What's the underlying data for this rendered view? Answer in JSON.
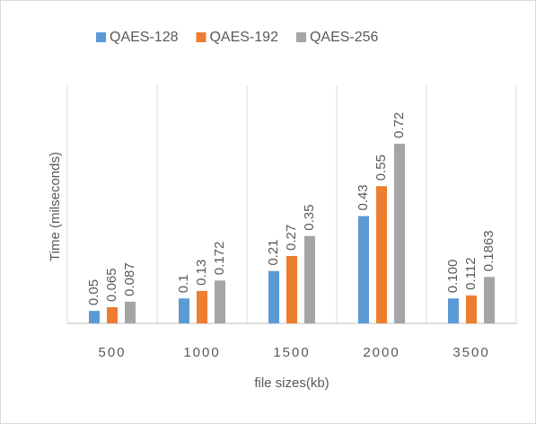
{
  "chart_data": {
    "type": "bar",
    "x_label": "file sizes(kb)",
    "y_label": "Time (milseconds)",
    "categories": [
      "500",
      "1000",
      "1500",
      "2000",
      "3500"
    ],
    "series": [
      {
        "name": "QAES-128",
        "color": "#5b9bd5",
        "values": [
          0.05,
          0.1,
          0.21,
          0.43,
          0.1
        ],
        "value_labels": [
          "0.05",
          "0.1",
          "0.21",
          "0.43",
          "0.100"
        ]
      },
      {
        "name": "QAES-192",
        "color": "#ed7d31",
        "values": [
          0.065,
          0.13,
          0.27,
          0.55,
          0.112
        ]
      },
      {
        "name": "QAES-256",
        "color": "#a5a5a5",
        "values": [
          0.087,
          0.172,
          0.35,
          0.72,
          0.1863
        ]
      }
    ],
    "legend": "top"
  }
}
